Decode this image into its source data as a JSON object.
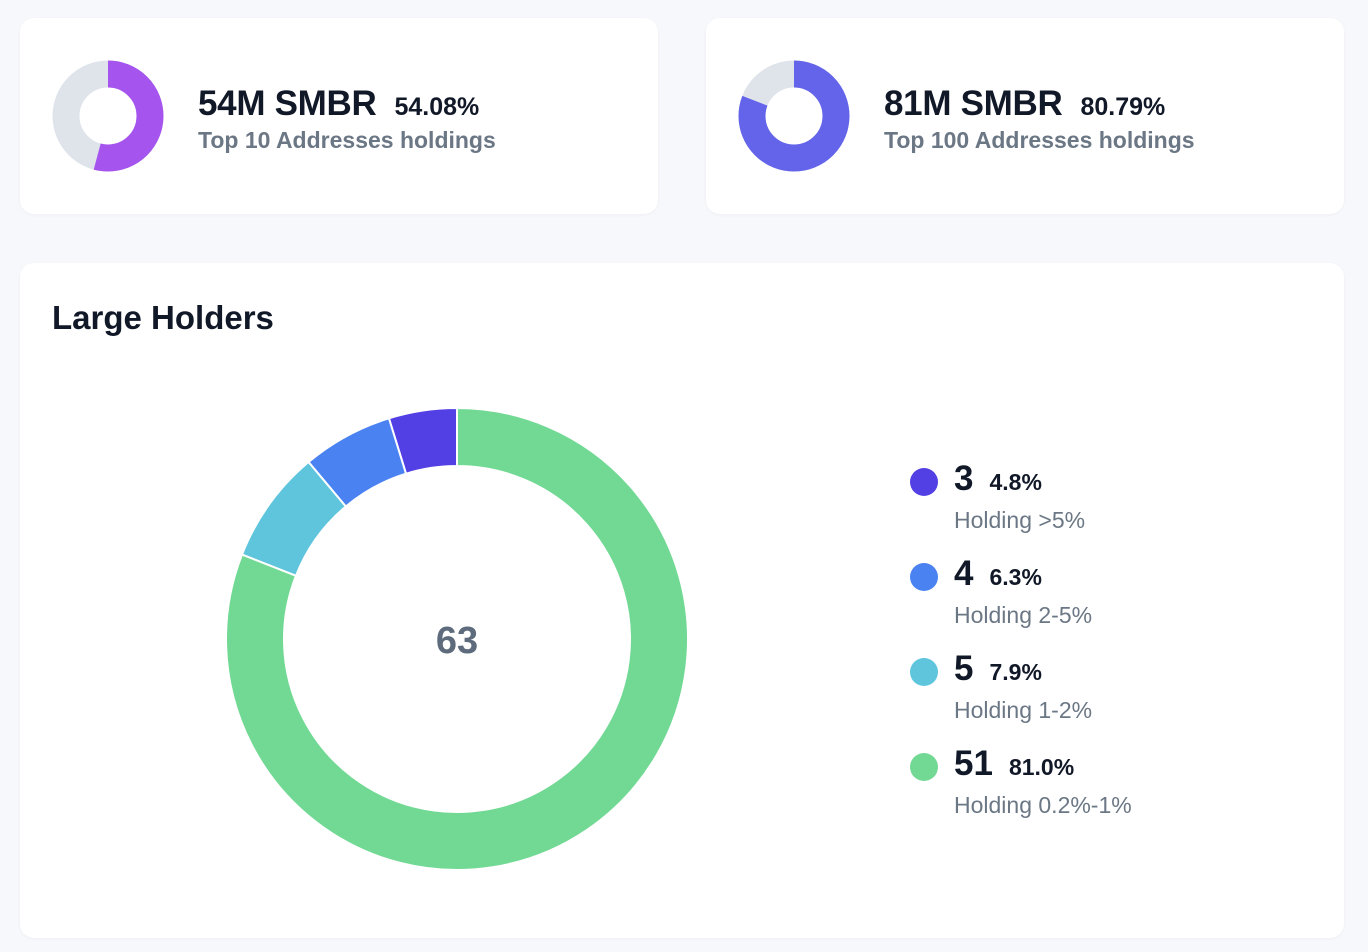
{
  "top10": {
    "amount": "54M SMBR",
    "percent": "54.08%",
    "label": "Top 10 Addresses holdings",
    "fraction": 0.5408,
    "color": "#a555ee",
    "track_color": "#dfe3ea"
  },
  "top100": {
    "amount": "81M SMBR",
    "percent": "80.79%",
    "label": "Top 100 Addresses holdings",
    "fraction": 0.8079,
    "color": "#6464eb",
    "track_color": "#dfe3ea"
  },
  "large_holders": {
    "title": "Large Holders"
  },
  "chart_data": {
    "type": "pie",
    "title": "Large Holders",
    "center_label": "63",
    "slices": [
      {
        "count": "3",
        "value": 3,
        "percent": "4.8%",
        "label": "Holding >5%",
        "color": "#5340e4"
      },
      {
        "count": "4",
        "value": 4,
        "percent": "6.3%",
        "label": "Holding 2-5%",
        "color": "#4a82f2"
      },
      {
        "count": "5",
        "value": 5,
        "percent": "7.9%",
        "label": "Holding 1-2%",
        "color": "#5ec5dd"
      },
      {
        "count": "51",
        "value": 51,
        "percent": "81.0%",
        "label": "Holding 0.2%-1%",
        "color": "#72d994"
      }
    ]
  }
}
